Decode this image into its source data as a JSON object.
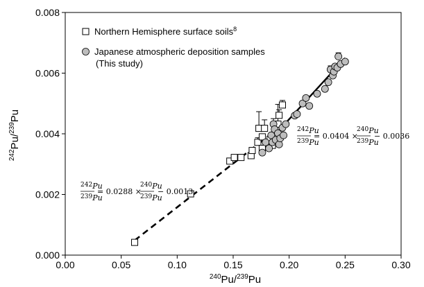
{
  "chart_data": {
    "type": "scatter",
    "xlabel": "240Pu/239Pu",
    "ylabel": "242Pu/239Pu",
    "xlim": [
      0.0,
      0.3
    ],
    "ylim": [
      0.0,
      0.008
    ],
    "x_ticks": [
      "0.00",
      "0.05",
      "0.10",
      "0.15",
      "0.20",
      "0.25",
      "0.30"
    ],
    "y_ticks": [
      "0.000",
      "0.002",
      "0.004",
      "0.006",
      "0.008"
    ],
    "x_tick_values": [
      0.0,
      0.05,
      0.1,
      0.15,
      0.2,
      0.25,
      0.3
    ],
    "y_tick_values": [
      0.0,
      0.002,
      0.004,
      0.006,
      0.008
    ],
    "legend": {
      "placement": "top-left",
      "entries": [
        {
          "label": "Northern Hemisphere surface soils",
          "sup": "8",
          "marker": "square-open"
        },
        {
          "label": "Japanese atmospheric deposition samples",
          "label2": "(This study)",
          "marker": "circle-gray"
        }
      ]
    },
    "series": [
      {
        "marker": "square-open",
        "points": [
          {
            "x": 0.062,
            "y": 0.00042
          },
          {
            "x": 0.112,
            "y": 0.00202
          },
          {
            "x": 0.147,
            "y": 0.0031
          },
          {
            "x": 0.151,
            "y": 0.00322,
            "err": 8e-05
          },
          {
            "x": 0.157,
            "y": 0.00322,
            "err": 0.0001
          },
          {
            "x": 0.166,
            "y": 0.00328,
            "err": 0.0001
          },
          {
            "x": 0.167,
            "y": 0.00345
          },
          {
            "x": 0.172,
            "y": 0.00372,
            "err": 0.00015
          },
          {
            "x": 0.173,
            "y": 0.00418,
            "err": 0.00055
          },
          {
            "x": 0.176,
            "y": 0.0039
          },
          {
            "x": 0.178,
            "y": 0.00418,
            "err": 0.00028
          },
          {
            "x": 0.18,
            "y": 0.00365
          },
          {
            "x": 0.183,
            "y": 0.00382
          },
          {
            "x": 0.185,
            "y": 0.00362
          },
          {
            "x": 0.188,
            "y": 0.004
          },
          {
            "x": 0.19,
            "y": 0.00432,
            "err": 0.00065
          },
          {
            "x": 0.191,
            "y": 0.00461,
            "err": 0.00018
          },
          {
            "x": 0.194,
            "y": 0.00495,
            "err": 0.00015
          },
          {
            "x": 0.176,
            "y": 0.00352
          }
        ]
      },
      {
        "marker": "circle-gray",
        "points": [
          {
            "x": 0.176,
            "y": 0.00338
          },
          {
            "x": 0.179,
            "y": 0.00372
          },
          {
            "x": 0.182,
            "y": 0.00352
          },
          {
            "x": 0.184,
            "y": 0.00395
          },
          {
            "x": 0.185,
            "y": 0.00372
          },
          {
            "x": 0.186,
            "y": 0.00432,
            "err": 0.00018
          },
          {
            "x": 0.187,
            "y": 0.00415
          },
          {
            "x": 0.188,
            "y": 0.0038
          },
          {
            "x": 0.19,
            "y": 0.00402
          },
          {
            "x": 0.191,
            "y": 0.00365
          },
          {
            "x": 0.192,
            "y": 0.00385
          },
          {
            "x": 0.194,
            "y": 0.0042
          },
          {
            "x": 0.195,
            "y": 0.00395
          },
          {
            "x": 0.197,
            "y": 0.00432
          },
          {
            "x": 0.205,
            "y": 0.0046
          },
          {
            "x": 0.207,
            "y": 0.00465
          },
          {
            "x": 0.212,
            "y": 0.005
          },
          {
            "x": 0.215,
            "y": 0.00518
          },
          {
            "x": 0.218,
            "y": 0.00492
          },
          {
            "x": 0.225,
            "y": 0.00532
          },
          {
            "x": 0.232,
            "y": 0.00548
          },
          {
            "x": 0.235,
            "y": 0.0057
          },
          {
            "x": 0.237,
            "y": 0.00612,
            "err": 0.00012
          },
          {
            "x": 0.239,
            "y": 0.00592
          },
          {
            "x": 0.24,
            "y": 0.00605
          },
          {
            "x": 0.241,
            "y": 0.00622
          },
          {
            "x": 0.243,
            "y": 0.00618
          },
          {
            "x": 0.244,
            "y": 0.00655,
            "err": 0.00012
          },
          {
            "x": 0.246,
            "y": 0.0063
          },
          {
            "x": 0.25,
            "y": 0.00638
          }
        ]
      }
    ],
    "fits": [
      {
        "style": "dashed",
        "slope": 0.0288,
        "intercept": -0.0013,
        "x_range": [
          0.062,
          0.176
        ]
      },
      {
        "style": "solid",
        "slope": 0.0404,
        "intercept": -0.0036,
        "x_range": [
          0.176,
          0.25
        ]
      }
    ],
    "annotations": [
      {
        "id": "dashed_eq",
        "coef": "0.0288",
        "const": "0.0013"
      },
      {
        "id": "solid_eq",
        "coef": "0.0404",
        "const": "0.0036"
      }
    ]
  }
}
